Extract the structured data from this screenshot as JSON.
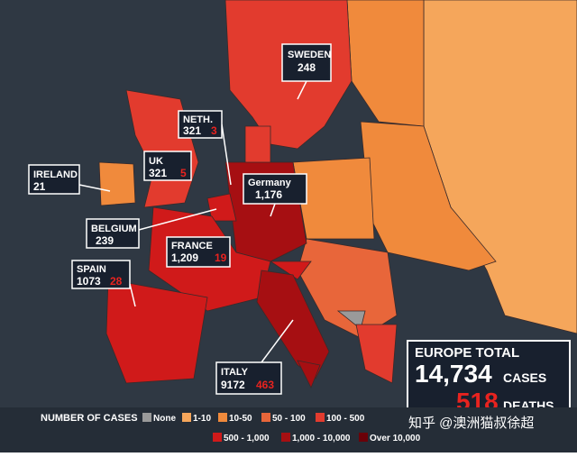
{
  "callouts": [
    {
      "name": "IRELAND",
      "cases": "21"
    },
    {
      "name": "UK",
      "cases": "321",
      "deaths": "5"
    },
    {
      "name": "NETH.",
      "cases": "321",
      "deaths": "3"
    },
    {
      "name": "SWEDEN",
      "cases": "248"
    },
    {
      "name": "Germany",
      "cases": "1,176"
    },
    {
      "name": "BELGIUM",
      "cases": "239"
    },
    {
      "name": "FRANCE",
      "cases": "1,209",
      "deaths": "19"
    },
    {
      "name": "SPAIN",
      "cases": "1073",
      "deaths": "28"
    },
    {
      "name": "ITALY",
      "cases": "9172",
      "deaths": "463"
    }
  ],
  "total": {
    "title": "EUROPE TOTAL",
    "cases": "14,734",
    "cases_label": "CASES",
    "deaths": "518",
    "deaths_label": "DEATHS"
  },
  "legend": {
    "title": "NUMBER OF CASES",
    "items": [
      {
        "label": "None",
        "color": "#9a9a9a"
      },
      {
        "label": "1-10",
        "color": "#f5a65b"
      },
      {
        "label": "10-50",
        "color": "#f08a3c"
      },
      {
        "label": "50 - 100",
        "color": "#e8663a"
      },
      {
        "label": "100 - 500",
        "color": "#e23b2e"
      },
      {
        "label": "500 - 1,000",
        "color": "#d01a1a"
      },
      {
        "label": "1,000 - 10,000",
        "color": "#a60f12"
      },
      {
        "label": "Over 10,000",
        "color": "#6a0008"
      }
    ]
  },
  "watermark": "知乎 @澳洲猫叔徐超"
}
